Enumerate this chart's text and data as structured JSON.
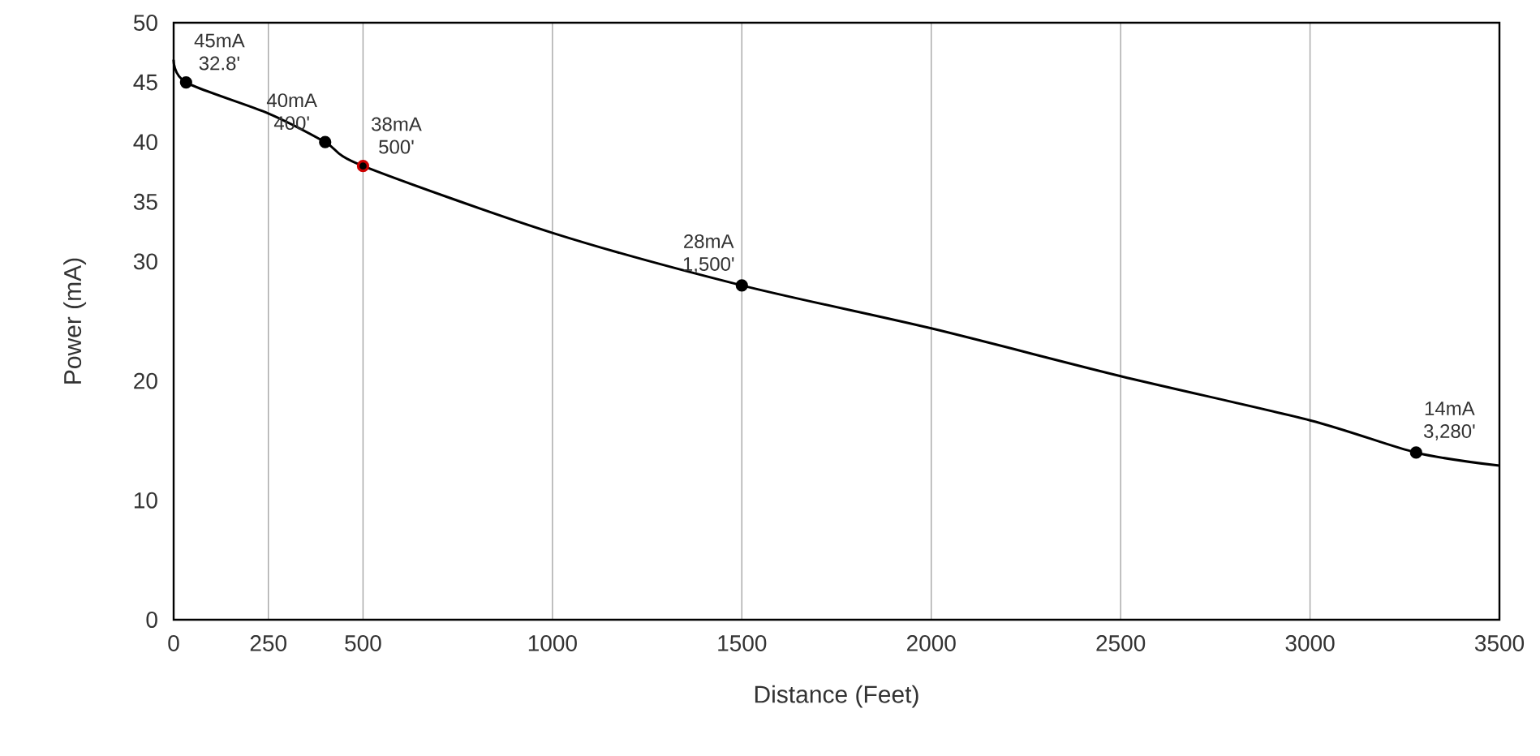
{
  "chart_data": {
    "type": "line",
    "xlabel": "Distance (Feet)",
    "ylabel": "Power (mA)",
    "xlim": [
      0,
      3500
    ],
    "xticks": [
      0,
      250,
      500,
      1000,
      1500,
      2000,
      2500,
      3000,
      3500
    ],
    "ylim": [
      0,
      50
    ],
    "yticks": [
      0,
      10,
      20,
      30,
      35,
      40,
      45,
      50
    ],
    "grid": "x",
    "marker": "circle",
    "line_style": "solid",
    "series": [
      {
        "type": "line",
        "color": "#000000",
        "marker": "none",
        "x": [
          0,
          32.8,
          250,
          400,
          500,
          1000,
          1500,
          2000,
          2500,
          3000,
          3280,
          3500
        ],
        "values": [
          46.9,
          45,
          42.4,
          40,
          38,
          32.4,
          28,
          24.4,
          20.4,
          16.7,
          14,
          12.9
        ]
      },
      {
        "type": "scatter",
        "color": "#000000",
        "x": [
          32.8,
          400,
          1500,
          3280
        ],
        "values": [
          45,
          40,
          28,
          14
        ]
      },
      {
        "type": "scatter",
        "color": "#cc0000",
        "x": [
          500
        ],
        "values": [
          38
        ]
      }
    ],
    "annotations": [
      {
        "text": "45mA 32.8'",
        "x": 32.8,
        "y": 45
      },
      {
        "text": "40mA 400'",
        "x": 400,
        "y": 40
      },
      {
        "text": "38mA 500'",
        "x": 500,
        "y": 38
      },
      {
        "text": "28mA 1,500'",
        "x": 1500,
        "y": 28
      },
      {
        "text": "14mA 3,280'",
        "x": 3280,
        "y": 14
      }
    ]
  }
}
